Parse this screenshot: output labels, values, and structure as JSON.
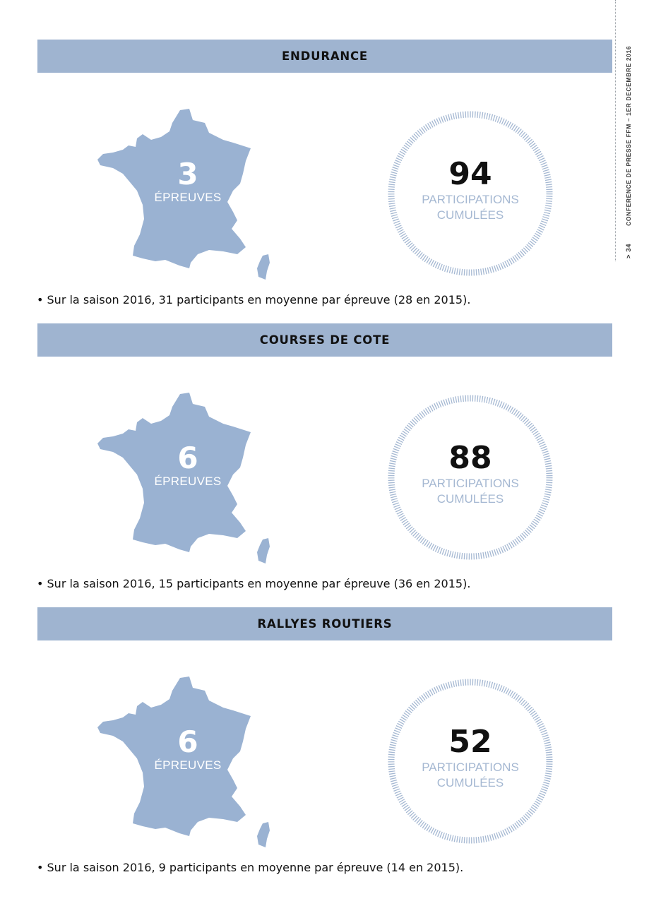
{
  "side_header": {
    "page_number": "> 34",
    "title": "CONFERENCE DE PRESSE FFM – 1ER DECEMBRE 2016"
  },
  "colors": {
    "banner": "#9fb4d0",
    "map": "#9ab2d2",
    "ring": "#a5b8d2"
  },
  "sections": [
    {
      "title": "ENDURANCE",
      "events_count": "3",
      "events_label": "ÉPREUVES",
      "participations": "94",
      "participations_label": "PARTICIPATIONS",
      "participations_label_2": "CUMULÉES",
      "note": "• Sur la saison 2016, 31 participants en moyenne par épreuve (28 en 2015)."
    },
    {
      "title": "COURSES DE COTE",
      "events_count": "6",
      "events_label": "ÉPREUVES",
      "participations": "88",
      "participations_label": "PARTICIPATIONS",
      "participations_label_2": "CUMULÉES",
      "note": "• Sur la saison 2016, 15 participants en moyenne par épreuve (36 en 2015)."
    },
    {
      "title": "RALLYES ROUTIERS",
      "events_count": "6",
      "events_label": "ÉPREUVES",
      "participations": "52",
      "participations_label": "PARTICIPATIONS",
      "participations_label_2": "CUMULÉES",
      "note": "• Sur la saison 2016, 9 participants en moyenne par épreuve (14 en 2015)."
    }
  ]
}
